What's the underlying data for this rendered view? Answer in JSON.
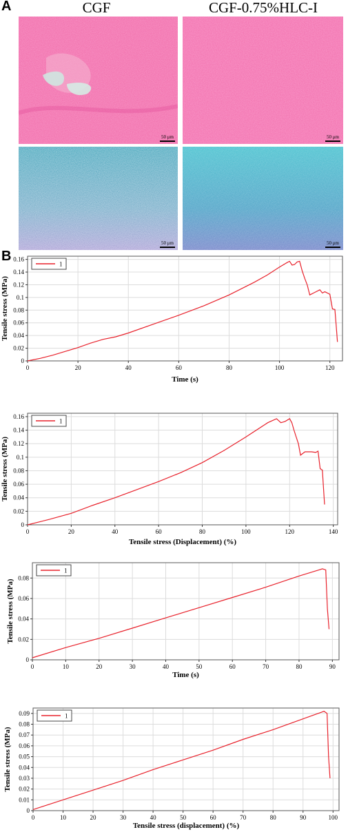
{
  "panel_a": {
    "letter": "A",
    "columns": [
      "CGF",
      "CGF-0.75%HLC-I"
    ],
    "scalebar_text": "50 μm",
    "stain_colors": {
      "pink": "#f06aa8",
      "blue": "#2fa3b8",
      "purple": "#9a8fd0"
    }
  },
  "panel_b": {
    "letter": "B"
  },
  "chart_data": [
    {
      "type": "line",
      "xlabel": "Time (s)",
      "ylabel": "Tensile stress (MPa)",
      "xlim": [
        0,
        125
      ],
      "ylim": [
        0,
        0.165
      ],
      "xticks": [
        0,
        20,
        40,
        60,
        80,
        100,
        120
      ],
      "yticks": [
        0,
        0.02,
        0.04,
        0.06,
        0.08,
        0.1,
        0.12,
        0.14,
        0.16
      ],
      "grid": true,
      "legend_position": "top-left",
      "series": [
        {
          "name": "1",
          "color": "#e8202a",
          "x": [
            0,
            5,
            10,
            15,
            20,
            25,
            30,
            35,
            40,
            50,
            60,
            70,
            80,
            90,
            95,
            100,
            103,
            104,
            105,
            106,
            107,
            108,
            109,
            110,
            111,
            112,
            114,
            116,
            117,
            118,
            119,
            120,
            121,
            122,
            122.5,
            123
          ],
          "y": [
            0.0,
            0.004,
            0.009,
            0.015,
            0.021,
            0.028,
            0.034,
            0.038,
            0.044,
            0.058,
            0.072,
            0.087,
            0.104,
            0.124,
            0.135,
            0.148,
            0.155,
            0.157,
            0.151,
            0.152,
            0.156,
            0.157,
            0.142,
            0.13,
            0.12,
            0.104,
            0.108,
            0.112,
            0.107,
            0.109,
            0.107,
            0.105,
            0.082,
            0.081,
            0.055,
            0.03
          ]
        }
      ]
    },
    {
      "type": "line",
      "xlabel": "Tensile stress (Displacement) (%)",
      "ylabel": "Tensile stress (MPa)",
      "xlim": [
        0,
        142
      ],
      "ylim": [
        0,
        0.165
      ],
      "xticks": [
        0,
        20,
        40,
        60,
        80,
        100,
        120,
        140
      ],
      "yticks": [
        0,
        0.02,
        0.04,
        0.06,
        0.08,
        0.1,
        0.12,
        0.14,
        0.16
      ],
      "grid": true,
      "legend_position": "top-left",
      "series": [
        {
          "name": "1",
          "color": "#e8202a",
          "x": [
            0,
            5,
            10,
            20,
            30,
            40,
            50,
            60,
            70,
            80,
            90,
            100,
            110,
            114,
            116,
            117,
            118,
            120,
            121,
            122,
            123,
            124,
            125,
            127,
            130,
            132,
            133,
            134,
            135,
            135.5,
            136
          ],
          "y": [
            0.0,
            0.004,
            0.008,
            0.017,
            0.029,
            0.04,
            0.052,
            0.064,
            0.077,
            0.092,
            0.11,
            0.13,
            0.151,
            0.157,
            0.151,
            0.152,
            0.153,
            0.157,
            0.151,
            0.14,
            0.13,
            0.12,
            0.103,
            0.108,
            0.108,
            0.107,
            0.109,
            0.083,
            0.081,
            0.055,
            0.03
          ]
        }
      ]
    },
    {
      "type": "line",
      "xlabel": "Time (s)",
      "ylabel": "Tensile stress (MPa)",
      "xlim": [
        0,
        92
      ],
      "ylim": [
        0,
        0.095
      ],
      "xticks": [
        0,
        10,
        20,
        30,
        40,
        50,
        60,
        70,
        80,
        90
      ],
      "yticks": [
        0,
        0.02,
        0.04,
        0.06,
        0.08
      ],
      "grid": true,
      "legend_position": "top-left",
      "series": [
        {
          "name": "1",
          "color": "#e8202a",
          "x": [
            0,
            10,
            20,
            30,
            40,
            50,
            60,
            70,
            80,
            86,
            87,
            88,
            88.5,
            89
          ],
          "y": [
            0.002,
            0.012,
            0.021,
            0.031,
            0.041,
            0.051,
            0.061,
            0.071,
            0.082,
            0.088,
            0.089,
            0.088,
            0.05,
            0.03
          ]
        }
      ]
    },
    {
      "type": "line",
      "xlabel": "Tensile stress (displacement) (%)",
      "ylabel": "Tensile stress (MPa)",
      "xlim": [
        0,
        102
      ],
      "ylim": [
        0,
        0.095
      ],
      "xticks": [
        0,
        10,
        20,
        30,
        40,
        50,
        60,
        70,
        80,
        90,
        100
      ],
      "yticks": [
        0,
        0.01,
        0.02,
        0.03,
        0.04,
        0.05,
        0.06,
        0.07,
        0.08,
        0.09
      ],
      "grid": true,
      "legend_position": "top-left",
      "series": [
        {
          "name": "1",
          "color": "#e8202a",
          "x": [
            0,
            10,
            20,
            30,
            40,
            50,
            60,
            70,
            80,
            90,
            96,
            97,
            98,
            98.5,
            99
          ],
          "y": [
            0.001,
            0.01,
            0.019,
            0.028,
            0.038,
            0.047,
            0.056,
            0.066,
            0.075,
            0.085,
            0.091,
            0.092,
            0.09,
            0.05,
            0.03
          ]
        }
      ]
    }
  ]
}
